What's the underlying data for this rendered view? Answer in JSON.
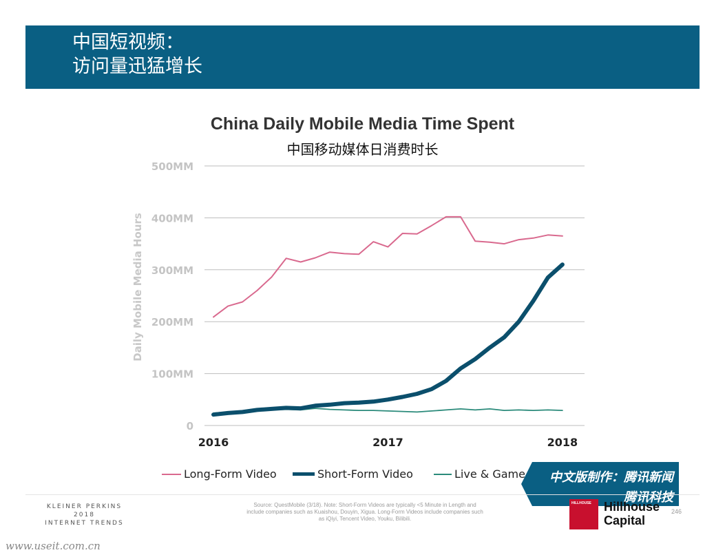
{
  "header": {
    "line1": "中国短视频：",
    "line2": "访问量迅猛增长"
  },
  "chart_data": {
    "type": "line",
    "title": "China Daily Mobile Media Time Spent",
    "subtitle": "中国移动媒体日消费时长",
    "ylabel": "Daily Mobile Media Hours",
    "xlabel": "",
    "ylim": [
      0,
      500
    ],
    "y_ticks": [
      0,
      100,
      200,
      300,
      400,
      500
    ],
    "y_tick_labels": [
      "0",
      "100MM",
      "200MM",
      "300MM",
      "400MM",
      "500MM"
    ],
    "x_tick_labels": [
      "2016",
      "2017",
      "2018"
    ],
    "x": [
      "2016-01",
      "2016-02",
      "2016-03",
      "2016-04",
      "2016-05",
      "2016-06",
      "2016-07",
      "2016-08",
      "2016-09",
      "2016-10",
      "2016-11",
      "2016-12",
      "2017-01",
      "2017-02",
      "2017-03",
      "2017-04",
      "2017-05",
      "2017-06",
      "2017-07",
      "2017-08",
      "2017-09",
      "2017-10",
      "2017-11",
      "2017-12",
      "2018-01",
      "2018-02"
    ],
    "series": [
      {
        "name": "Long-Form Video",
        "color": "#d9698e",
        "values": [
          209,
          230,
          238,
          260,
          286,
          322,
          315,
          323,
          334,
          331,
          330,
          354,
          344,
          370,
          369,
          385,
          402,
          402,
          355,
          353,
          350,
          358,
          361,
          367,
          365,
          null
        ]
      },
      {
        "name": "Short-Form Video",
        "color": "#0b4f6c",
        "values": [
          21,
          24,
          26,
          30,
          32,
          34,
          33,
          38,
          40,
          43,
          44,
          46,
          50,
          55,
          61,
          70,
          86,
          110,
          128,
          150,
          170,
          200,
          240,
          285,
          310,
          null
        ]
      },
      {
        "name": "Live & Game Streaming",
        "color": "#2a8a7a",
        "values": [
          24,
          26,
          27,
          28,
          30,
          31,
          30,
          33,
          31,
          30,
          29,
          29,
          28,
          27,
          26,
          28,
          30,
          32,
          30,
          32,
          29,
          30,
          29,
          30,
          29,
          null
        ]
      }
    ],
    "grid": "horizontal",
    "legend_position": "bottom"
  },
  "legend": [
    {
      "label": "Long-Form Video",
      "color": "#d9698e"
    },
    {
      "label": "Short-Form Video",
      "color": "#0b4f6c"
    },
    {
      "label": "Live & Game Streaming",
      "color": "#2a8a7a"
    }
  ],
  "banner": {
    "line1": "中文版制作：腾讯新闻",
    "line2": "腾讯科技"
  },
  "footer": {
    "brand1": "KLEINER PERKINS",
    "brand2": "2018",
    "brand3": "INTERNET TRENDS",
    "source": "Source: QuestMobile (3/18). Note: Short-Form Videos are typically <5 Minute in Length and include companies such as Kuaishou, Douyin, Xigua. Long-Form Videos include companies such as iQiyi, Tencent Video, Youku, Bilibili.",
    "page_number": "246",
    "logo_small": "HILLHOUSE",
    "logo_line1": "Hillhouse",
    "logo_line2": "Capital",
    "url": "www.useit.com.cn"
  },
  "colors": {
    "header_bg": "#0a5f83",
    "grid": "#bdbdbd"
  }
}
